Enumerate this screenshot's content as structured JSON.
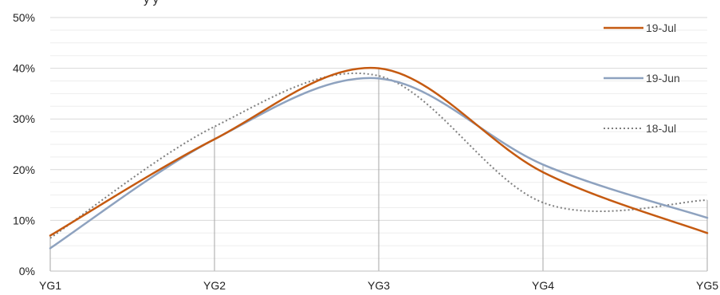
{
  "chart_data": {
    "type": "line",
    "title_fragment": "y   y",
    "categories": [
      "YG1",
      "YG2",
      "YG3",
      "YG4",
      "YG5"
    ],
    "ylim": [
      0,
      50
    ],
    "yticks": [
      "0%",
      "10%",
      "20%",
      "30%",
      "40%",
      "50%"
    ],
    "y_unit": "%",
    "grid": true,
    "legend_position": "right",
    "series": [
      {
        "name": "19-Jul",
        "values": [
          7,
          26,
          40,
          19.5,
          7.5
        ],
        "color": "#C55A11",
        "style": "solid"
      },
      {
        "name": "19-Jun",
        "values": [
          4.5,
          26,
          38,
          21,
          10.5
        ],
        "color": "#8EA2BF",
        "style": "solid"
      },
      {
        "name": "18-Jul",
        "values": [
          6.5,
          28.5,
          38.5,
          13.5,
          14
        ],
        "color": "#7F7F7F",
        "style": "dotted"
      }
    ]
  }
}
